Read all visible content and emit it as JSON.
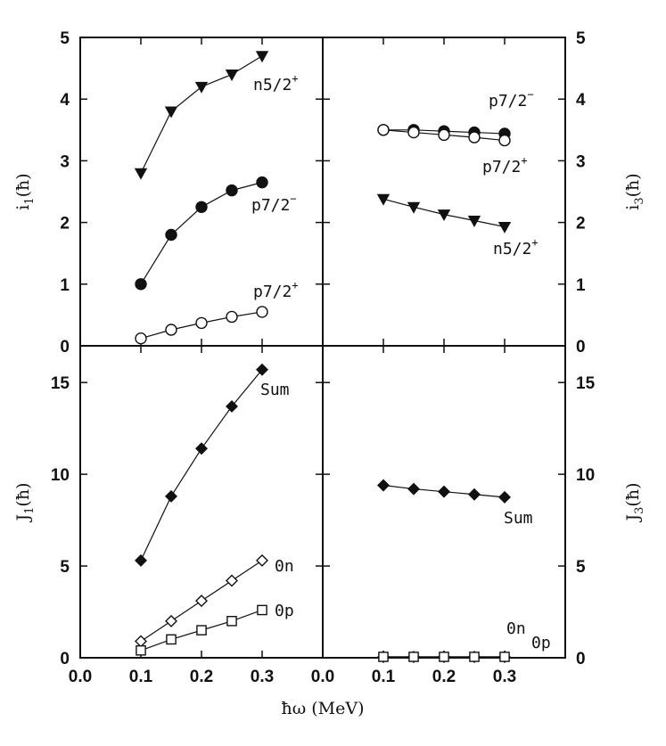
{
  "figure": {
    "xlabel": "ħω (MeV)",
    "x_tick_labels": [
      "0.0",
      "0.1",
      "0.2",
      "0.3",
      "0.0",
      "0.1",
      "0.2",
      "0.3"
    ]
  },
  "chart_data": [
    {
      "type": "line",
      "panel": "top-left",
      "ylabel": "i1(ħ)",
      "ylim": [
        0,
        5
      ],
      "xlim": [
        0.0,
        0.4
      ],
      "y_ticks": [
        0,
        1,
        2,
        3,
        4,
        5
      ],
      "series": [
        {
          "name": "n5/2+",
          "marker": "triangle-down-filled",
          "points": [
            [
              0.1,
              2.8
            ],
            [
              0.15,
              3.8
            ],
            [
              0.2,
              4.2
            ],
            [
              0.25,
              4.4
            ],
            [
              0.3,
              4.7
            ]
          ]
        },
        {
          "name": "p7/2−",
          "marker": "circle-filled",
          "points": [
            [
              0.1,
              1.0
            ],
            [
              0.15,
              1.8
            ],
            [
              0.2,
              2.25
            ],
            [
              0.25,
              2.52
            ],
            [
              0.3,
              2.65
            ]
          ]
        },
        {
          "name": "p7/2+",
          "marker": "circle-open",
          "points": [
            [
              0.1,
              0.12
            ],
            [
              0.15,
              0.26
            ],
            [
              0.2,
              0.37
            ],
            [
              0.25,
              0.47
            ],
            [
              0.3,
              0.55
            ]
          ]
        }
      ]
    },
    {
      "type": "line",
      "panel": "top-right",
      "ylabel": "i3(ħ)",
      "ylim": [
        0,
        5
      ],
      "xlim": [
        0.0,
        0.4
      ],
      "y_ticks": [
        0,
        1,
        2,
        3,
        4,
        5
      ],
      "series": [
        {
          "name": "p7/2−",
          "marker": "circle-filled",
          "points": [
            [
              0.1,
              3.5
            ],
            [
              0.15,
              3.5
            ],
            [
              0.2,
              3.48
            ],
            [
              0.25,
              3.46
            ],
            [
              0.3,
              3.44
            ]
          ]
        },
        {
          "name": "p7/2+",
          "marker": "circle-open",
          "points": [
            [
              0.1,
              3.5
            ],
            [
              0.15,
              3.46
            ],
            [
              0.2,
              3.42
            ],
            [
              0.25,
              3.38
            ],
            [
              0.3,
              3.33
            ]
          ]
        },
        {
          "name": "n5/2+",
          "marker": "triangle-down-filled",
          "points": [
            [
              0.1,
              2.38
            ],
            [
              0.15,
              2.25
            ],
            [
              0.2,
              2.13
            ],
            [
              0.25,
              2.03
            ],
            [
              0.3,
              1.93
            ]
          ]
        }
      ]
    },
    {
      "type": "line",
      "panel": "bottom-left",
      "ylabel": "J1(ħ)",
      "ylim": [
        0,
        17
      ],
      "xlim": [
        0.0,
        0.4
      ],
      "y_ticks": [
        0,
        5,
        10,
        15
      ],
      "series": [
        {
          "name": "Sum",
          "marker": "diamond-filled",
          "points": [
            [
              0.1,
              5.3
            ],
            [
              0.15,
              8.8
            ],
            [
              0.2,
              11.4
            ],
            [
              0.25,
              13.7
            ],
            [
              0.3,
              15.7
            ]
          ]
        },
        {
          "name": "0n",
          "marker": "diamond-open",
          "points": [
            [
              0.1,
              0.9
            ],
            [
              0.15,
              2.0
            ],
            [
              0.2,
              3.1
            ],
            [
              0.25,
              4.2
            ],
            [
              0.3,
              5.3
            ]
          ]
        },
        {
          "name": "0p",
          "marker": "square-open",
          "points": [
            [
              0.1,
              0.4
            ],
            [
              0.15,
              1.0
            ],
            [
              0.2,
              1.5
            ],
            [
              0.25,
              2.0
            ],
            [
              0.3,
              2.6
            ]
          ]
        }
      ]
    },
    {
      "type": "line",
      "panel": "bottom-right",
      "ylabel": "J3(ħ)",
      "ylim": [
        0,
        17
      ],
      "xlim": [
        0.0,
        0.4
      ],
      "y_ticks": [
        0,
        5,
        10,
        15
      ],
      "series": [
        {
          "name": "Sum",
          "marker": "diamond-filled",
          "points": [
            [
              0.1,
              9.4
            ],
            [
              0.15,
              9.2
            ],
            [
              0.2,
              9.05
            ],
            [
              0.25,
              8.9
            ],
            [
              0.3,
              8.75
            ]
          ]
        },
        {
          "name": "0n",
          "marker": "diamond-open",
          "points": [
            [
              0.1,
              0.05
            ],
            [
              0.15,
              0.05
            ],
            [
              0.2,
              0.05
            ],
            [
              0.25,
              0.05
            ],
            [
              0.3,
              0.05
            ]
          ]
        },
        {
          "name": "0p",
          "marker": "square-open",
          "points": [
            [
              0.1,
              0.05
            ],
            [
              0.15,
              0.05
            ],
            [
              0.2,
              0.05
            ],
            [
              0.25,
              0.05
            ],
            [
              0.3,
              0.05
            ]
          ]
        }
      ]
    }
  ]
}
